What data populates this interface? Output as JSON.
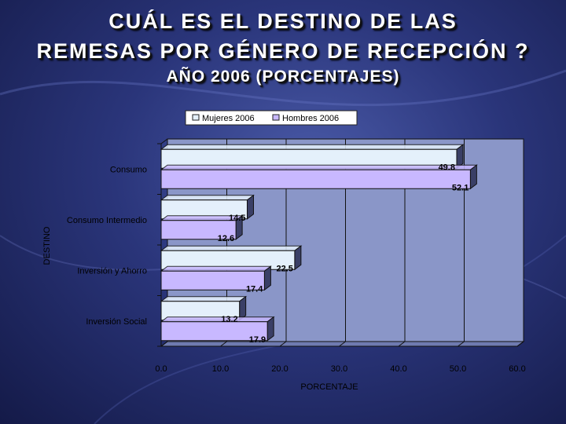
{
  "title": {
    "line1": "CUÁL ES EL DESTINO DE LAS",
    "line2": "REMESAS POR GÉNERO DE RECEPCIÓN ?",
    "line3": "AÑO 2006 (PORCENTAJES)"
  },
  "colors": {
    "mujeres": "#e4f0fb",
    "hombres": "#c8b8ff",
    "plot_bg": "#8a96c8",
    "grid": "#111111"
  },
  "chart_data": {
    "type": "bar",
    "orientation": "horizontal",
    "title": "CUÁL ES EL DESTINO DE LAS REMESAS POR GÉNERO DE RECEPCIÓN ? AÑO 2006 (PORCENTAJES)",
    "xlabel": "PORCENTAJE",
    "ylabel": "DESTINO",
    "categories": [
      "Consumo",
      "Consumo Intermedio",
      "Inversión y Ahorro",
      "Inversión Social"
    ],
    "series": [
      {
        "name": "Mujeres 2006",
        "values": [
          49.8,
          14.5,
          22.5,
          13.2
        ],
        "labels": [
          "49.8",
          "14.5",
          "22.5",
          "13.2"
        ]
      },
      {
        "name": "Hombres 2006",
        "values": [
          52.1,
          12.6,
          17.4,
          17.9
        ],
        "labels": [
          "52.1",
          "12.6",
          "17.4",
          "17.9"
        ]
      }
    ],
    "xlim": [
      0,
      60
    ],
    "xticks": [
      0,
      10,
      20,
      30,
      40,
      50,
      60
    ],
    "xtick_labels": [
      "0.0",
      "10.0",
      "20.0",
      "30.0",
      "40.0",
      "50.0",
      "60.0"
    ],
    "grid": true,
    "legend": "top"
  }
}
